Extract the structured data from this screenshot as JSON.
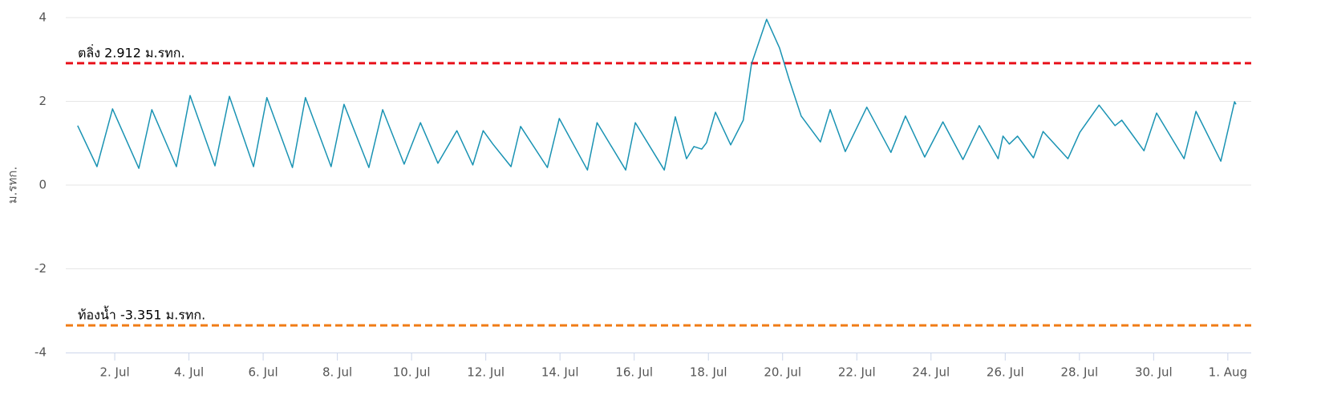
{
  "chart_data": {
    "type": "line",
    "y_label": "ม.รทก.",
    "ylim": [
      -4,
      4
    ],
    "yticks": [
      -4,
      -2,
      0,
      2,
      4
    ],
    "grid": true,
    "xlim": [
      0.68,
      32.63
    ],
    "xticks": [
      {
        "value": 2,
        "label": "2. Jul"
      },
      {
        "value": 4,
        "label": "4. Jul"
      },
      {
        "value": 6,
        "label": "6. Jul"
      },
      {
        "value": 8,
        "label": "8. Jul"
      },
      {
        "value": 10,
        "label": "10. Jul"
      },
      {
        "value": 12,
        "label": "12. Jul"
      },
      {
        "value": 14,
        "label": "14. Jul"
      },
      {
        "value": 16,
        "label": "16. Jul"
      },
      {
        "value": 18,
        "label": "18. Jul"
      },
      {
        "value": 20,
        "label": "20. Jul"
      },
      {
        "value": 22,
        "label": "22. Jul"
      },
      {
        "value": 24,
        "label": "24. Jul"
      },
      {
        "value": 26,
        "label": "26. Jul"
      },
      {
        "value": 28,
        "label": "28. Jul"
      },
      {
        "value": 30,
        "label": "30. Jul"
      },
      {
        "value": 32,
        "label": "1. Aug"
      }
    ],
    "plot_lines": [
      {
        "value": 2.912,
        "label": "ตลิ่ง 2.912 ม.รทก.",
        "color": "#e8101a"
      },
      {
        "value": -3.351,
        "label": "ท้องน้ำ -3.351 ม.รทก.",
        "color": "#f07c16"
      }
    ],
    "series": [
      {
        "color": "#1a93b3",
        "x": [
          1.0,
          1.52,
          1.94,
          2.65,
          3.0,
          3.66,
          4.03,
          4.7,
          5.09,
          5.74,
          6.1,
          6.79,
          7.14,
          7.83,
          8.18,
          8.85,
          9.22,
          9.8,
          10.24,
          10.71,
          11.0,
          11.22,
          11.65,
          11.93,
          12.19,
          12.68,
          12.94,
          13.66,
          13.98,
          14.74,
          15.0,
          15.77,
          16.03,
          16.81,
          17.11,
          17.41,
          17.61,
          17.82,
          17.95,
          18.19,
          18.6,
          18.94,
          19.16,
          19.57,
          19.92,
          20.18,
          20.5,
          21.02,
          21.28,
          21.69,
          22.27,
          22.92,
          23.31,
          23.83,
          24.32,
          24.86,
          25.3,
          25.81,
          25.94,
          26.11,
          26.33,
          26.76,
          27.02,
          27.69,
          28.01,
          28.53,
          28.96,
          29.14,
          29.74,
          30.08,
          30.82,
          31.14,
          31.81,
          32.18,
          32.22
        ],
        "values": [
          1.42,
          0.44,
          1.82,
          0.4,
          1.8,
          0.44,
          2.14,
          0.46,
          2.12,
          0.44,
          2.09,
          0.42,
          2.09,
          0.44,
          1.93,
          0.42,
          1.8,
          0.5,
          1.49,
          0.52,
          0.96,
          1.3,
          0.48,
          1.3,
          0.98,
          0.44,
          1.4,
          0.42,
          1.59,
          0.36,
          1.49,
          0.36,
          1.49,
          0.36,
          1.63,
          0.63,
          0.92,
          0.86,
          1.01,
          1.74,
          0.96,
          1.55,
          2.89,
          3.96,
          3.27,
          2.51,
          1.65,
          1.03,
          1.8,
          0.8,
          1.86,
          0.78,
          1.65,
          0.67,
          1.51,
          0.61,
          1.42,
          0.63,
          1.17,
          0.98,
          1.17,
          0.65,
          1.28,
          0.63,
          1.26,
          1.91,
          1.42,
          1.55,
          0.82,
          1.72,
          0.63,
          1.76,
          0.57,
          1.99,
          1.93
        ]
      }
    ]
  }
}
